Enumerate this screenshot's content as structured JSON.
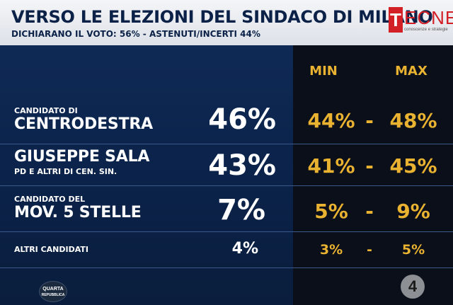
{
  "header": {
    "title": "VERSO LE ELEZIONI DEL SINDACO DI MILANO",
    "subtitle": "DICHIARANO IL VOTO: 56% - ASTENUTI/INCERTI 44%"
  },
  "logo": {
    "first_letter": "T",
    "rest": "ECNE",
    "tagline": "conoscenze e strategie",
    "accent_color": "#d32027"
  },
  "columns": {
    "min": "MIN",
    "max": "MAX"
  },
  "rows": [
    {
      "line1": "CANDIDATO DI",
      "line2": "CENTRODESTRA",
      "value": "46%",
      "min": "44%",
      "max": "48%"
    },
    {
      "line1": "GIUSEPPE SALA",
      "line2": "PD E ALTRI DI CEN. SIN.",
      "value": "43%",
      "min": "41%",
      "max": "45%"
    },
    {
      "line1": "CANDIDATO DEL",
      "line2": "MOV. 5 STELLE",
      "value": "7%",
      "min": "5%",
      "max": "9%"
    },
    {
      "line1": "ALTRI CANDIDATI",
      "value": "4%",
      "min": "3%",
      "max": "5%"
    }
  ],
  "dash": "-",
  "brand_left": {
    "line1": "QUARTA",
    "line2": "REPUBBLICA"
  },
  "brand_right": {
    "glyph": "4"
  },
  "colors": {
    "gold": "#e9b230",
    "navy": "#0b2147"
  }
}
